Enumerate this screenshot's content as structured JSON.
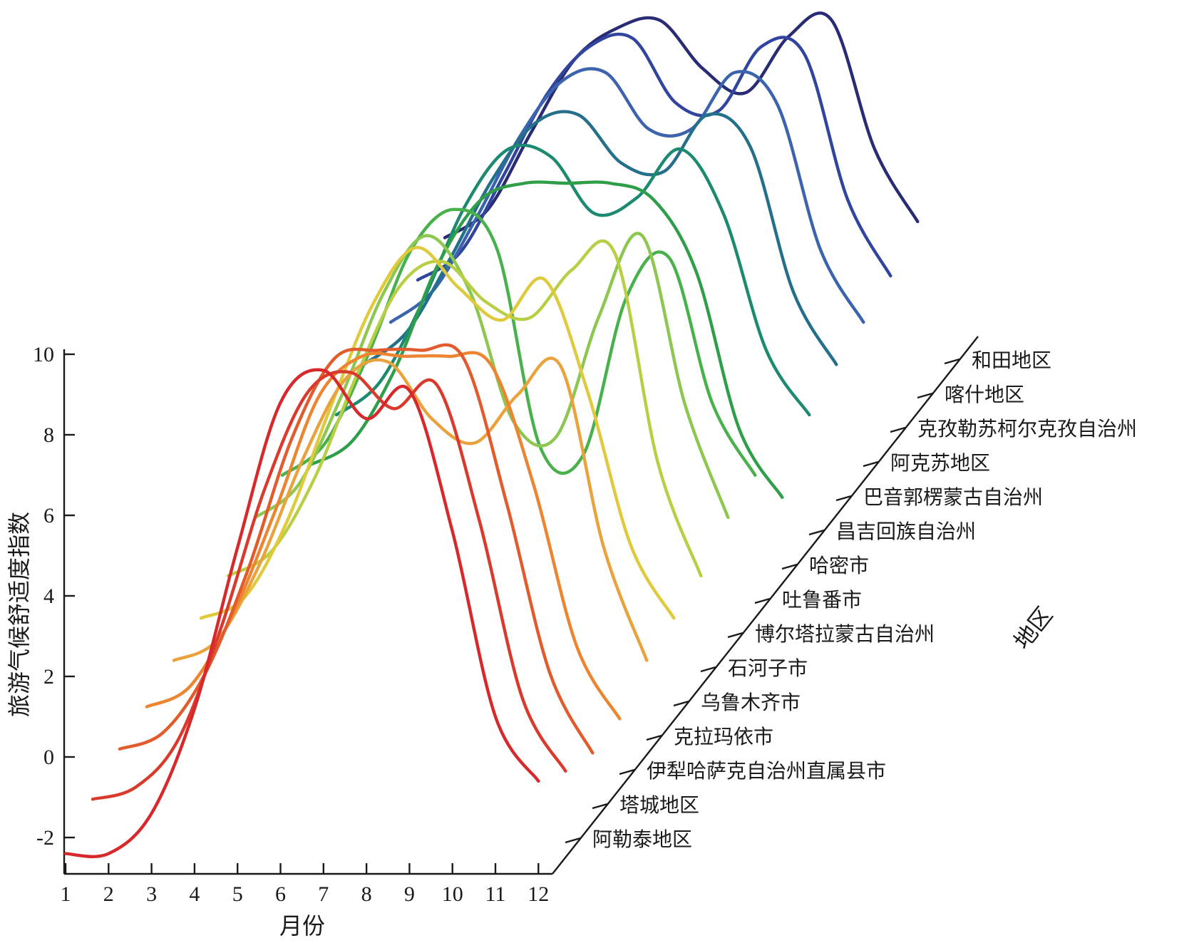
{
  "page": {
    "background": "#ffffff"
  },
  "chart_data": {
    "type": "line",
    "variant": "3d-waterfall-ridgeline",
    "title": "",
    "xlabel": "月份",
    "ylabel": "旅游气候舒适度指数",
    "zlabel": "地区",
    "grid": false,
    "legend_position": "none",
    "x": [
      1,
      2,
      3,
      4,
      5,
      6,
      7,
      8,
      9,
      10,
      11,
      12
    ],
    "x_tick_labels": [
      "1",
      "2",
      "3",
      "4",
      "5",
      "6",
      "7",
      "8",
      "9",
      "10",
      "11",
      "12"
    ],
    "y_ticks": [
      -2,
      0,
      2,
      4,
      6,
      8,
      10
    ],
    "y_tick_labels": [
      "-2",
      "0",
      "2",
      "4",
      "6",
      "8",
      "10"
    ],
    "ylim": [
      -3,
      10.5
    ],
    "zlim_note": "regions listed front-to-back along depth axis",
    "series": [
      {
        "name": "阿勒泰地区",
        "color": "#d7282b",
        "values": [
          -2.4,
          -2.4,
          -1.4,
          1.2,
          5.2,
          8.8,
          9.6,
          8.4,
          9.1,
          5.6,
          1.0,
          -0.6
        ]
      },
      {
        "name": "塔城地区",
        "color": "#d93a2c",
        "values": [
          -1.9,
          -1.6,
          -0.4,
          2.4,
          5.8,
          8.2,
          8.7,
          7.8,
          8.4,
          5.0,
          0.6,
          -1.2
        ]
      },
      {
        "name": "伊犁哈萨克自治州直属县市",
        "color": "#e25b2c",
        "values": [
          -1.5,
          -1.1,
          0.4,
          3.0,
          6.2,
          8.2,
          8.4,
          8.4,
          8.2,
          4.6,
          0.4,
          -1.6
        ]
      },
      {
        "name": "克拉玛依市",
        "color": "#ec8430",
        "values": [
          -1.3,
          -0.8,
          1.0,
          3.6,
          6.4,
          7.4,
          7.4,
          7.4,
          7.2,
          4.2,
          0.2,
          -1.6
        ]
      },
      {
        "name": "乌鲁木齐市",
        "color": "#eaa23c",
        "values": [
          -1.0,
          -0.5,
          1.4,
          4.0,
          6.0,
          6.4,
          5.0,
          4.4,
          5.6,
          6.3,
          1.8,
          -1.0
        ]
      },
      {
        "name": "石河子市",
        "color": "#dfc93d",
        "values": [
          -0.8,
          -0.3,
          1.6,
          4.4,
          7.0,
          8.4,
          7.4,
          6.6,
          7.6,
          4.8,
          1.0,
          -0.8
        ]
      },
      {
        "name": "博尔塔拉蒙古自治州",
        "color": "#b8cf45",
        "values": [
          -0.6,
          0.0,
          1.8,
          4.4,
          6.6,
          7.2,
          6.2,
          5.8,
          7.0,
          7.4,
          2.2,
          -0.6
        ]
      },
      {
        "name": "吐鲁番市",
        "color": "#8dc750",
        "values": [
          0.0,
          0.8,
          3.0,
          5.6,
          7.0,
          5.6,
          2.4,
          2.0,
          5.0,
          7.0,
          2.8,
          0.0
        ]
      },
      {
        "name": "哈密市",
        "color": "#49b14b",
        "values": [
          0.2,
          1.0,
          3.2,
          5.8,
          6.8,
          5.8,
          0.9,
          0.7,
          4.6,
          5.6,
          2.0,
          0.2
        ]
      },
      {
        "name": "昌吉回族自治州",
        "color": "#2f9e49",
        "values": [
          -0.4,
          0.2,
          2.0,
          4.6,
          6.2,
          6.6,
          6.6,
          6.6,
          6.2,
          4.4,
          0.5,
          -1.2
        ]
      },
      {
        "name": "巴音郭楞蒙古自治州",
        "color": "#1b8a71",
        "values": [
          0.0,
          0.8,
          2.8,
          5.2,
          6.6,
          6.4,
          5.0,
          5.4,
          6.6,
          5.0,
          1.6,
          0.0
        ]
      },
      {
        "name": "阿克苏地区",
        "color": "#24708a",
        "values": [
          0.4,
          1.2,
          3.0,
          5.0,
          6.4,
          6.6,
          5.4,
          5.2,
          6.6,
          5.8,
          2.2,
          0.4
        ]
      },
      {
        "name": "克孜勒苏柯尔克孜自治州",
        "color": "#3b63ae",
        "values": [
          0.6,
          1.4,
          3.2,
          5.2,
          6.6,
          6.8,
          5.4,
          5.4,
          6.8,
          6.0,
          2.4,
          0.6
        ]
      },
      {
        "name": "喀什地区",
        "color": "#32459e",
        "values": [
          0.8,
          1.5,
          3.4,
          5.4,
          6.6,
          6.8,
          5.2,
          5.0,
          6.6,
          6.4,
          2.8,
          0.9
        ]
      },
      {
        "name": "和田地区",
        "color": "#292c74",
        "values": [
          1.0,
          1.7,
          3.6,
          5.4,
          6.2,
          6.4,
          5.2,
          4.6,
          6.0,
          6.4,
          3.2,
          1.4
        ]
      }
    ]
  }
}
